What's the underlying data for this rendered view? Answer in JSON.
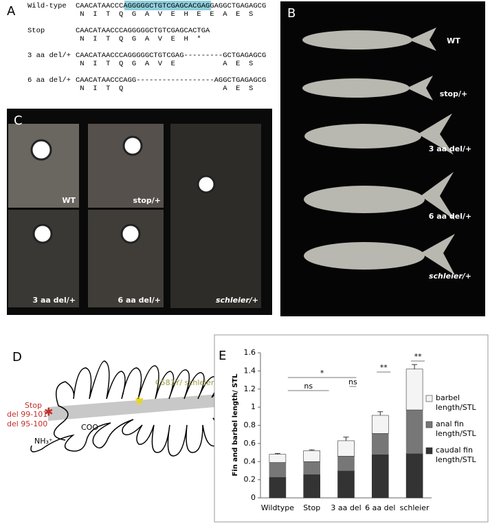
{
  "panel_a": {
    "letter": "A",
    "rows": [
      {
        "label": "Wild-type",
        "sequence": [
          "CAACATAACCCA",
          "GGGGGCTGTCGAGCACGAGG",
          "AGGCTGAGAGCG"
        ],
        "protein": " N  I  T  Q  G  A  V  E  H  E  E  A  E  S"
      },
      {
        "label": "Stop",
        "sequence": [
          "CAACATAACCCAGGGGGCTGTCGAGCACTGA"
        ],
        "protein": " N  I  T  Q  G  A  V  E  H  *"
      },
      {
        "label": "3 aa del/+",
        "sequence": [
          "CAACATAACCCAGGGGGCTGTCGAG---------GCTGAGAGCG"
        ],
        "protein": " N  I  T  Q  G  A  V  E           A  E  S"
      },
      {
        "label": "6 aa del/+",
        "sequence": [
          "CAACATAACCCAGG------------------AGGCTGAGAGCG"
        ],
        "protein": " N  I  T  Q                       A  E  S"
      }
    ]
  },
  "panel_b": {
    "letter": "B",
    "labels": [
      "WT",
      "stop/+",
      "3 aa del/+",
      "6 aa del/+",
      "schleier/+"
    ]
  },
  "panel_c": {
    "letter": "C",
    "labels": [
      "WT",
      "stop/+",
      "3 aa del/+",
      "6 aa del/+",
      "schleier/+"
    ]
  },
  "panel_d": {
    "letter": "D",
    "mutation": "C583Y/ schleier",
    "stop": "Stop",
    "del1": "del 99-101",
    "del2": "del 95-100",
    "n_term": "NH₃⁺",
    "c_term": "COO⁻"
  },
  "chart_data": {
    "type": "bar",
    "stacked": true,
    "letter": "E",
    "ylabel": "Fin and barbel length/ STL",
    "categories": [
      "Wildtype",
      "Stop",
      "3 aa del",
      "6 aa del",
      "schleier"
    ],
    "series": [
      {
        "name": "caudal fin length/STL",
        "color": "#333333",
        "values": [
          0.23,
          0.26,
          0.3,
          0.48,
          0.49
        ]
      },
      {
        "name": "anal fin length/STL",
        "color": "#777777",
        "values": [
          0.16,
          0.14,
          0.16,
          0.23,
          0.48
        ]
      },
      {
        "name": "barbel length/STL",
        "color": "#f4f4f4",
        "values": [
          0.09,
          0.12,
          0.17,
          0.2,
          0.45
        ],
        "errors": [
          0.01,
          0.01,
          0.04,
          0.04,
          0.05
        ]
      }
    ],
    "ylim": [
      0,
      1.6
    ],
    "yticks": [
      0,
      0.2,
      0.4,
      0.6,
      0.8,
      1,
      1.2,
      1.4,
      1.6
    ],
    "annotations": [
      "ns",
      "ns",
      "*",
      "**",
      "**"
    ]
  }
}
